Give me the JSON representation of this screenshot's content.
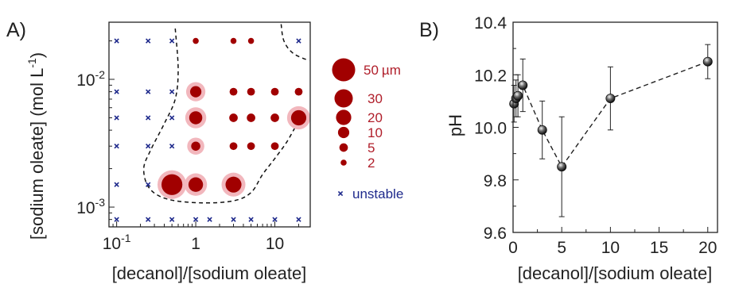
{
  "colors": {
    "dot": "#a10000",
    "halo": "#f2b7bd",
    "cross": "#1f2a8c",
    "boundary": "#111111",
    "marker": "#111111",
    "legend_label": "#b01e2a",
    "legend_unstable": "#1f2a8c"
  },
  "panel_labels": {
    "a": "A)",
    "b": "B)"
  },
  "chart_data": [
    {
      "id": "A",
      "type": "scatter",
      "x_scale": "log",
      "y_scale": "log",
      "xlabel": "[decanol]/[sodium oleate]",
      "ylabel_prefix": "[sodium oleate] (mol L",
      "ylabel_sup": "-1",
      "ylabel_suffix": ")",
      "xlim": [
        0.08,
        28
      ],
      "ylim": [
        0.0007,
        0.028
      ],
      "x_ticks": [
        {
          "value": 0.1,
          "base": "10",
          "exp": "-1"
        },
        {
          "value": 1,
          "label": "1"
        },
        {
          "value": 10,
          "label": "10"
        }
      ],
      "y_ticks": [
        {
          "value": 0.001,
          "base": "10",
          "exp": "-3"
        },
        {
          "value": 0.01,
          "base": "10",
          "exp": "-2"
        }
      ],
      "unstable_points": [
        [
          0.1,
          0.0008
        ],
        [
          0.25,
          0.0008
        ],
        [
          0.5,
          0.0008
        ],
        [
          1,
          0.0008
        ],
        [
          1.5,
          0.0008
        ],
        [
          3,
          0.0008
        ],
        [
          5,
          0.0008
        ],
        [
          10,
          0.0008
        ],
        [
          20,
          0.0008
        ],
        [
          0.1,
          0.0015
        ],
        [
          0.25,
          0.0015
        ],
        [
          0.1,
          0.003
        ],
        [
          0.25,
          0.003
        ],
        [
          0.5,
          0.003
        ],
        [
          0.1,
          0.005
        ],
        [
          0.25,
          0.005
        ],
        [
          0.5,
          0.005
        ],
        [
          0.1,
          0.008
        ],
        [
          0.25,
          0.008
        ],
        [
          0.5,
          0.008
        ],
        [
          0.1,
          0.02
        ],
        [
          0.25,
          0.02
        ],
        [
          0.5,
          0.02
        ],
        [
          20,
          0.02
        ]
      ],
      "droplet_points": [
        {
          "x": 0.5,
          "y": 0.0015,
          "size": 40,
          "halo": true
        },
        {
          "x": 1,
          "y": 0.0015,
          "size": 18,
          "halo": true
        },
        {
          "x": 3,
          "y": 0.0015,
          "size": 22,
          "halo": true
        },
        {
          "x": 1,
          "y": 0.003,
          "size": 6,
          "halo": true
        },
        {
          "x": 3,
          "y": 0.003,
          "size": 4,
          "halo": false
        },
        {
          "x": 5,
          "y": 0.003,
          "size": 4,
          "halo": false
        },
        {
          "x": 10,
          "y": 0.003,
          "size": 4,
          "halo": false
        },
        {
          "x": 1,
          "y": 0.005,
          "size": 14,
          "halo": true
        },
        {
          "x": 3,
          "y": 0.005,
          "size": 5,
          "halo": false
        },
        {
          "x": 5,
          "y": 0.005,
          "size": 5,
          "halo": false
        },
        {
          "x": 10,
          "y": 0.005,
          "size": 5,
          "halo": false
        },
        {
          "x": 20,
          "y": 0.005,
          "size": 20,
          "halo": true
        },
        {
          "x": 1,
          "y": 0.008,
          "size": 10,
          "halo": true
        },
        {
          "x": 3,
          "y": 0.008,
          "size": 4,
          "halo": false
        },
        {
          "x": 5,
          "y": 0.008,
          "size": 4,
          "halo": false
        },
        {
          "x": 10,
          "y": 0.008,
          "size": 4,
          "halo": false
        },
        {
          "x": 20,
          "y": 0.008,
          "size": 4,
          "halo": false
        },
        {
          "x": 1,
          "y": 0.02,
          "size": 2,
          "halo": false
        },
        {
          "x": 3,
          "y": 0.02,
          "size": 2,
          "halo": false
        },
        {
          "x": 5,
          "y": 0.02,
          "size": 2,
          "halo": false
        }
      ],
      "boundaries": [
        [
          [
            0.55,
            0.025
          ],
          [
            0.6,
            0.012
          ],
          [
            0.55,
            0.007
          ],
          [
            0.4,
            0.0045
          ],
          [
            0.27,
            0.0028
          ],
          [
            0.22,
            0.002
          ],
          [
            0.26,
            0.0014
          ],
          [
            0.45,
            0.00115
          ],
          [
            1.2,
            0.00108
          ],
          [
            3,
            0.00112
          ],
          [
            5,
            0.0013
          ],
          [
            7,
            0.0018
          ],
          [
            10,
            0.0024
          ],
          [
            14,
            0.0032
          ],
          [
            18,
            0.0042
          ]
        ],
        [
          [
            12,
            0.027
          ],
          [
            13,
            0.02
          ],
          [
            17,
            0.016
          ],
          [
            27,
            0.014
          ]
        ]
      ],
      "size_legend": [
        {
          "size": 50,
          "label": "50",
          "unit": "µm"
        },
        {
          "size": 30,
          "label": "30"
        },
        {
          "size": 20,
          "label": "20"
        },
        {
          "size": 10,
          "label": "10"
        },
        {
          "size": 5,
          "label": "5"
        },
        {
          "size": 2,
          "label": "2"
        }
      ],
      "unstable_legend": "unstable"
    },
    {
      "id": "B",
      "type": "line",
      "xlabel": "[decanol]/[sodium oleate]",
      "ylabel": "pH",
      "xlim": [
        0,
        21
      ],
      "ylim": [
        9.6,
        10.4
      ],
      "x_ticks": [
        0,
        5,
        10,
        15,
        20
      ],
      "y_ticks": [
        "9.6",
        "9.8",
        "10.0",
        "10.2",
        "10.4"
      ],
      "points": [
        {
          "x": 0.1,
          "y": 10.09,
          "err": 0.07
        },
        {
          "x": 0.3,
          "y": 10.11,
          "err": 0.07
        },
        {
          "x": 0.5,
          "y": 10.12,
          "err": 0.08
        },
        {
          "x": 1,
          "y": 10.16,
          "err": 0.1
        },
        {
          "x": 3,
          "y": 9.99,
          "err": 0.11
        },
        {
          "x": 5,
          "y": 9.85,
          "err": 0.19
        },
        {
          "x": 10,
          "y": 10.11,
          "err": 0.12
        },
        {
          "x": 20,
          "y": 10.25,
          "err": 0.065
        }
      ]
    }
  ]
}
